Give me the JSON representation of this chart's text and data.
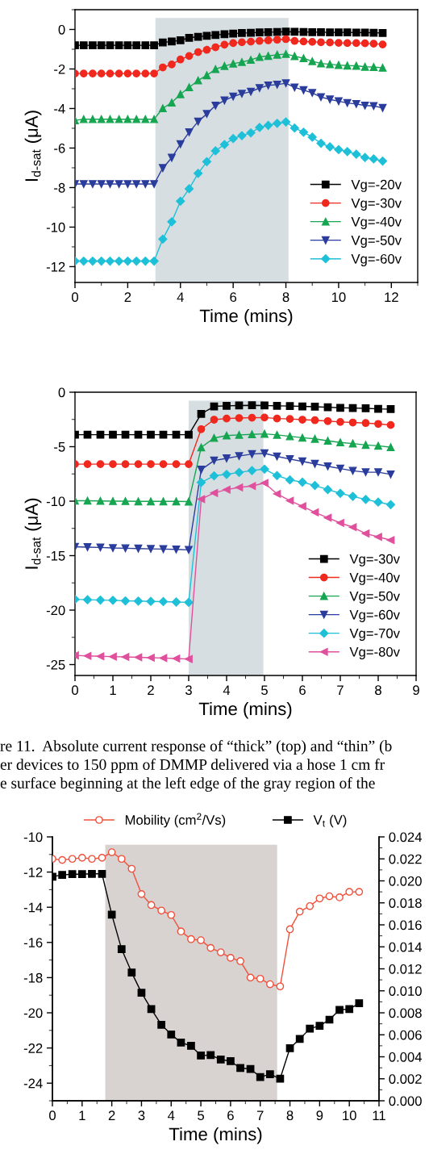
{
  "chart_data": [
    {
      "type": "line",
      "xlabel": "Time (mins)",
      "ylabel": "I$_{d-sat}$ (μA)",
      "xlim": [
        0,
        13
      ],
      "ylim": [
        -12.8,
        1
      ],
      "xticks": [
        0,
        2,
        4,
        6,
        8,
        10,
        12
      ],
      "yticks": [
        -12,
        -10,
        -8,
        -6,
        -4,
        -2,
        0
      ],
      "legend": "bottom right",
      "grid": false,
      "x": [
        0,
        0.33,
        0.67,
        1,
        1.33,
        1.67,
        2,
        2.33,
        2.67,
        3,
        3.33,
        3.67,
        4,
        4.33,
        4.67,
        5,
        5.33,
        5.67,
        6,
        6.33,
        6.67,
        7,
        7.33,
        7.67,
        8,
        8.33,
        8.67,
        9,
        9.33,
        9.67,
        10,
        10.33,
        10.67,
        11,
        11.33,
        11.67
      ],
      "bands": [
        {
          "axis": "x",
          "from": 3.05,
          "to": 8.1,
          "color": "#d6dee2"
        }
      ],
      "series": [
        {
          "name": "Vg=-20v",
          "color": "#000000",
          "marker": "square",
          "values": [
            -0.8,
            -0.8,
            -0.8,
            -0.8,
            -0.8,
            -0.8,
            -0.8,
            -0.8,
            -0.8,
            -0.8,
            -0.66,
            -0.61,
            -0.55,
            -0.42,
            -0.37,
            -0.32,
            -0.28,
            -0.24,
            -0.21,
            -0.18,
            -0.17,
            -0.15,
            -0.14,
            -0.13,
            -0.11,
            -0.12,
            -0.13,
            -0.14,
            -0.14,
            -0.15,
            -0.15,
            -0.15,
            -0.16,
            -0.16,
            -0.17,
            -0.18
          ]
        },
        {
          "name": "Vg=-30v",
          "color": "#f0281e",
          "marker": "circle",
          "values": [
            -2.23,
            -2.23,
            -2.23,
            -2.23,
            -2.23,
            -2.23,
            -2.23,
            -2.23,
            -2.23,
            -2.23,
            -1.92,
            -1.77,
            -1.52,
            -1.34,
            -1.15,
            -1.03,
            -0.9,
            -0.77,
            -0.69,
            -0.65,
            -0.62,
            -0.58,
            -0.55,
            -0.52,
            -0.49,
            -0.58,
            -0.61,
            -0.63,
            -0.65,
            -0.66,
            -0.68,
            -0.69,
            -0.69,
            -0.7,
            -0.72,
            -0.76
          ]
        },
        {
          "name": "Vg=-40v",
          "color": "#16a550",
          "marker": "triangle",
          "values": [
            -4.6,
            -4.54,
            -4.54,
            -4.54,
            -4.54,
            -4.54,
            -4.54,
            -4.54,
            -4.54,
            -4.54,
            -3.99,
            -3.7,
            -3.28,
            -2.93,
            -2.58,
            -2.32,
            -2.01,
            -1.85,
            -1.73,
            -1.65,
            -1.54,
            -1.39,
            -1.34,
            -1.28,
            -1.24,
            -1.35,
            -1.46,
            -1.61,
            -1.72,
            -1.76,
            -1.8,
            -1.83,
            -1.84,
            -1.89,
            -1.9,
            -1.94
          ]
        },
        {
          "name": "Vg=-50v",
          "color": "#2a3c9c",
          "marker": "triangle-down",
          "values": [
            -7.82,
            -7.82,
            -7.82,
            -7.82,
            -7.82,
            -7.82,
            -7.82,
            -7.82,
            -7.82,
            -7.82,
            -7.01,
            -6.49,
            -5.8,
            -5.2,
            -4.66,
            -4.27,
            -3.85,
            -3.59,
            -3.39,
            -3.25,
            -3.15,
            -2.96,
            -2.83,
            -2.79,
            -2.72,
            -2.93,
            -3.07,
            -3.21,
            -3.42,
            -3.54,
            -3.63,
            -3.72,
            -3.77,
            -3.85,
            -3.87,
            -3.97
          ]
        },
        {
          "name": "Vg=-60v",
          "color": "#1ec0d8",
          "marker": "diamond",
          "values": [
            -11.72,
            -11.72,
            -11.72,
            -11.72,
            -11.72,
            -11.72,
            -11.72,
            -11.72,
            -11.72,
            -11.72,
            -10.61,
            -9.73,
            -8.69,
            -8.06,
            -7.28,
            -6.69,
            -6.14,
            -5.82,
            -5.52,
            -5.37,
            -5.23,
            -4.96,
            -4.85,
            -4.75,
            -4.68,
            -4.99,
            -5.2,
            -5.45,
            -5.76,
            -5.94,
            -6.08,
            -6.18,
            -6.31,
            -6.48,
            -6.55,
            -6.66
          ]
        }
      ]
    },
    {
      "type": "line",
      "xlabel": "Time (mins)",
      "ylabel": "I$_{d-sat}$ (μA)",
      "xlim": [
        0,
        9
      ],
      "ylim": [
        -26,
        0
      ],
      "xticks": [
        0,
        1,
        2,
        3,
        4,
        5,
        6,
        7,
        8,
        9
      ],
      "yticks": [
        -25,
        -20,
        -15,
        -10,
        -5,
        0
      ],
      "legend": "bottom right",
      "grid": false,
      "x": [
        0,
        0.33,
        0.67,
        1,
        1.33,
        1.67,
        2,
        2.33,
        2.67,
        3,
        3.33,
        3.67,
        4,
        4.33,
        4.67,
        5,
        5.33,
        5.67,
        6,
        6.33,
        6.67,
        7,
        7.33,
        7.67,
        8,
        8.33
      ],
      "bands": [
        {
          "axis": "x",
          "from": 3,
          "to": 4.97,
          "color": "#d6dee2"
        }
      ],
      "annotations": [
        "re 11.  Absolute current response of “thick” (top) and “thin” (b",
        "er devices to 150 ppm of DMMP delivered via a hose 1 cm fr",
        "e surface beginning at the left edge of the gray region of the"
      ],
      "series": [
        {
          "name": "Vg=-30v",
          "color": "#000000",
          "marker": "square",
          "values": [
            -3.9,
            -3.9,
            -3.9,
            -3.9,
            -3.9,
            -3.9,
            -3.9,
            -3.9,
            -3.9,
            -3.9,
            -1.99,
            -1.3,
            -1.25,
            -1.22,
            -1.2,
            -1.22,
            -1.25,
            -1.27,
            -1.3,
            -1.33,
            -1.38,
            -1.43,
            -1.45,
            -1.48,
            -1.53,
            -1.55
          ]
        },
        {
          "name": "Vg=-40v",
          "color": "#f0281e",
          "marker": "circle",
          "values": [
            -6.6,
            -6.6,
            -6.6,
            -6.6,
            -6.6,
            -6.6,
            -6.6,
            -6.6,
            -6.6,
            -6.6,
            -3.39,
            -2.52,
            -2.42,
            -2.37,
            -2.34,
            -2.32,
            -2.42,
            -2.45,
            -2.52,
            -2.57,
            -2.65,
            -2.73,
            -2.78,
            -2.83,
            -2.91,
            -3.01
          ]
        },
        {
          "name": "Vg=-50v",
          "color": "#16a550",
          "marker": "triangle",
          "values": [
            -9.96,
            -9.96,
            -9.98,
            -10,
            -10,
            -10.02,
            -10.02,
            -10.02,
            -10.02,
            -10.04,
            -5.07,
            -4.2,
            -3.98,
            -3.92,
            -3.87,
            -3.82,
            -3.92,
            -4.05,
            -4.18,
            -4.28,
            -4.46,
            -4.61,
            -4.71,
            -4.84,
            -4.92,
            -5.05
          ]
        },
        {
          "name": "Vg=-60v",
          "color": "#2a3c9c",
          "marker": "triangle-down",
          "values": [
            -14.19,
            -14.22,
            -14.25,
            -14.3,
            -14.32,
            -14.35,
            -14.38,
            -14.4,
            -14.43,
            -14.47,
            -7.11,
            -6.27,
            -6.07,
            -5.86,
            -5.68,
            -5.61,
            -5.89,
            -6.14,
            -6.35,
            -6.57,
            -6.8,
            -7.01,
            -7.21,
            -7.34,
            -7.34,
            -7.54
          ]
        },
        {
          "name": "Vg=-70v",
          "color": "#1ec0d8",
          "marker": "diamond",
          "values": [
            -19.01,
            -19.05,
            -19.08,
            -19.1,
            -19.15,
            -19.17,
            -19.2,
            -19.22,
            -19.26,
            -19.29,
            -8.28,
            -7.67,
            -7.54,
            -7.36,
            -7.19,
            -7.06,
            -7.65,
            -8.05,
            -8.26,
            -8.56,
            -8.94,
            -9.28,
            -9.56,
            -9.84,
            -10.09,
            -10.32
          ]
        },
        {
          "name": "Vg=-80v",
          "color": "#e0509c",
          "marker": "triangle-left",
          "values": [
            -24.16,
            -24.2,
            -24.24,
            -24.27,
            -24.3,
            -24.33,
            -24.37,
            -24.4,
            -24.44,
            -24.49,
            -9.81,
            -9.25,
            -8.94,
            -8.74,
            -8.61,
            -8.33,
            -9.33,
            -9.96,
            -10.47,
            -11.03,
            -11.52,
            -12,
            -12.39,
            -12.97,
            -13.28,
            -13.58
          ]
        }
      ]
    },
    {
      "type": "line",
      "xlabel": "Time (mins)",
      "xlim": [
        0,
        11
      ],
      "ylim": [
        -25,
        -10
      ],
      "y2lim": [
        0,
        0.024
      ],
      "xticks": [
        0,
        1,
        2,
        3,
        4,
        5,
        6,
        7,
        8,
        9,
        10,
        11
      ],
      "yticks": [
        -24,
        -22,
        -20,
        -18,
        -16,
        -14,
        -12,
        -10
      ],
      "y2ticks": [
        {
          "value": 0,
          "label": "0.000"
        },
        {
          "value": 0.002,
          "label": "0.002"
        },
        {
          "value": 0.004,
          "label": "0.004"
        },
        {
          "value": 0.006,
          "label": "0.006"
        },
        {
          "value": 0.008,
          "label": "0.008"
        },
        {
          "value": 0.01,
          "label": "0.010"
        },
        {
          "value": 0.012,
          "label": "0.012"
        },
        {
          "value": 0.014,
          "label": "0.014"
        },
        {
          "value": 0.016,
          "label": "0.016"
        },
        {
          "value": 0.018,
          "label": "0.018"
        },
        {
          "value": 0.02,
          "label": "0.020"
        },
        {
          "value": 0.022,
          "label": "0.022"
        },
        {
          "value": 0.024,
          "label": "0.024"
        }
      ],
      "legend": "top",
      "grid": false,
      "x": [
        0,
        0.33,
        0.67,
        1,
        1.33,
        1.67,
        2,
        2.33,
        2.67,
        3,
        3.33,
        3.67,
        4,
        4.33,
        4.67,
        5,
        5.33,
        5.67,
        6,
        6.33,
        6.67,
        7,
        7.33,
        7.67,
        8,
        8.33,
        8.67,
        9,
        9.33,
        9.67,
        10,
        10.33
      ],
      "bands": [
        {
          "axis": "x",
          "from": 1.78,
          "to": 7.57,
          "color": "#d8d3d0"
        }
      ],
      "series": [
        {
          "name": "Mobility (cm$^{2}$/Vs)",
          "color": "#f0503c",
          "marker": "circle-open",
          "axis": "y2",
          "values": [
            0.022,
            0.0219,
            0.022,
            0.0221,
            0.022,
            0.0221,
            0.0226,
            0.022,
            0.0211,
            0.0188,
            0.0178,
            0.0173,
            0.0169,
            0.0154,
            0.0147,
            0.0146,
            0.0139,
            0.0135,
            0.013,
            0.0127,
            0.0112,
            0.0111,
            0.0106,
            0.0104,
            0.0156,
            0.0172,
            0.0177,
            0.0184,
            0.0186,
            0.0185,
            0.019,
            0.019
          ]
        },
        {
          "name": "V$_{t}$ (V)",
          "color": "#000000",
          "marker": "square",
          "values": [
            -12.26,
            -12.16,
            -12.12,
            -12.12,
            -12.1,
            -12.1,
            -14.42,
            -16.38,
            -17.71,
            -18.86,
            -19.79,
            -20.68,
            -21.23,
            -21.69,
            -21.88,
            -22.43,
            -22.4,
            -22.65,
            -22.75,
            -23.14,
            -23.19,
            -23.65,
            -23.49,
            -23.74,
            -22.01,
            -21.49,
            -20.9,
            -20.74,
            -20.39,
            -19.83,
            -19.79,
            -19.46
          ]
        }
      ]
    }
  ]
}
